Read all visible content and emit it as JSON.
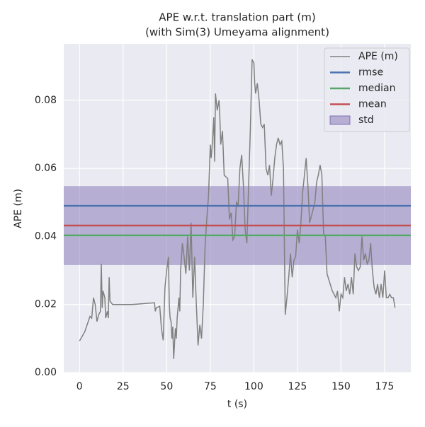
{
  "chart_data": {
    "type": "line",
    "title": [
      "APE w.r.t. translation part (m)",
      "(with Sim(3) Umeyama alignment)"
    ],
    "x_label": "t (s)",
    "y_label": "APE (m)",
    "xlim": [
      -9.05,
      190.05
    ],
    "ylim": [
      0,
      0.0966
    ],
    "xticks": [
      0,
      25,
      50,
      75,
      100,
      125,
      150,
      175
    ],
    "yticks": [
      {
        "value": 0,
        "label": "0.00"
      },
      {
        "value": 0.02,
        "label": "0.02"
      },
      {
        "value": 0.04,
        "label": "0.04"
      },
      {
        "value": 0.06,
        "label": "0.06"
      },
      {
        "value": 0.08,
        "label": "0.08"
      }
    ],
    "grid": true,
    "legend": "upper right",
    "series": [
      {
        "name": "APE (m)",
        "color": "#808080",
        "x": [
          0,
          3,
          6,
          7,
          8,
          9,
          10,
          11,
          12,
          12.5,
          13,
          13.5,
          14.5,
          15,
          16,
          16.5,
          17,
          17.5,
          19,
          20,
          30,
          43,
          43.5,
          44,
          46,
          47,
          48,
          49,
          50,
          51,
          51.5,
          52,
          52.5,
          53,
          53.5,
          54,
          55,
          55.5,
          56,
          57,
          57.5,
          58,
          59,
          60,
          61,
          62,
          63,
          64,
          65,
          66,
          67,
          68,
          69,
          70,
          71,
          72,
          73,
          74,
          74.5,
          75,
          75.5,
          76,
          76.5,
          77,
          77.5,
          78,
          79,
          80,
          80.5,
          81,
          82,
          83,
          85,
          86,
          87,
          88,
          89,
          90,
          91,
          92,
          93,
          94,
          95,
          96,
          97,
          98,
          99,
          100,
          100.5,
          101,
          102,
          103,
          104,
          105,
          106,
          107,
          108,
          109,
          110,
          111,
          112,
          113,
          114,
          115,
          116,
          117,
          118,
          119,
          120,
          121,
          122,
          123,
          124,
          125,
          126,
          127,
          128,
          129,
          130,
          131,
          132,
          133,
          134,
          135,
          136,
          137,
          138,
          139,
          140,
          141,
          142,
          145,
          147,
          148,
          149,
          150,
          151,
          152,
          153,
          154,
          155,
          156,
          157,
          158,
          159,
          160,
          161,
          162,
          163,
          164,
          165,
          166,
          167,
          168,
          169,
          170,
          171,
          172,
          173,
          174,
          175,
          176,
          177,
          178,
          179,
          180,
          181
        ],
        "values": [
          0.0093,
          0.012,
          0.0165,
          0.016,
          0.022,
          0.02,
          0.015,
          0.017,
          0.018,
          0.032,
          0.019,
          0.024,
          0.022,
          0.016,
          0.018,
          0.016,
          0.028,
          0.021,
          0.02,
          0.02,
          0.02,
          0.0205,
          0.018,
          0.019,
          0.0195,
          0.013,
          0.0095,
          0.025,
          0.03,
          0.034,
          0.02,
          0.016,
          0.015,
          0.01,
          0.0135,
          0.004,
          0.013,
          0.01,
          0.016,
          0.022,
          0.018,
          0.03,
          0.038,
          0.034,
          0.029,
          0.04,
          0.03,
          0.044,
          0.022,
          0.034,
          0.02,
          0.008,
          0.014,
          0.01,
          0.02,
          0.037,
          0.045,
          0.052,
          0.059,
          0.067,
          0.063,
          0.066,
          0.07,
          0.075,
          0.062,
          0.082,
          0.077,
          0.08,
          0.075,
          0.067,
          0.071,
          0.058,
          0.057,
          0.045,
          0.047,
          0.039,
          0.04,
          0.05,
          0.049,
          0.06,
          0.064,
          0.055,
          0.042,
          0.038,
          0.055,
          0.072,
          0.092,
          0.091,
          0.085,
          0.082,
          0.085,
          0.08,
          0.073,
          0.072,
          0.073,
          0.06,
          0.058,
          0.061,
          0.052,
          0.057,
          0.063,
          0.067,
          0.069,
          0.067,
          0.068,
          0.06,
          0.017,
          0.022,
          0.028,
          0.035,
          0.028,
          0.033,
          0.034,
          0.042,
          0.038,
          0.044,
          0.053,
          0.058,
          0.063,
          0.055,
          0.044,
          0.046,
          0.048,
          0.05,
          0.056,
          0.058,
          0.061,
          0.058,
          0.041,
          0.04,
          0.029,
          0.024,
          0.022,
          0.024,
          0.018,
          0.023,
          0.022,
          0.028,
          0.024,
          0.026,
          0.023,
          0.028,
          0.023,
          0.035,
          0.031,
          0.03,
          0.031,
          0.04,
          0.033,
          0.035,
          0.032,
          0.033,
          0.038,
          0.03,
          0.025,
          0.023,
          0.026,
          0.022,
          0.026,
          0.022,
          0.03,
          0.022,
          0.022,
          0.023,
          0.022,
          0.022,
          0.019
        ]
      }
    ],
    "stats": [
      {
        "name": "rmse",
        "color": "#4c72b0",
        "value": 0.049
      },
      {
        "name": "median",
        "color": "#55a868",
        "value": 0.0403
      },
      {
        "name": "mean",
        "color": "#c44e52",
        "value": 0.0432
      },
      {
        "name": "std",
        "color": "#8172b3",
        "value": 0.0116
      }
    ]
  }
}
